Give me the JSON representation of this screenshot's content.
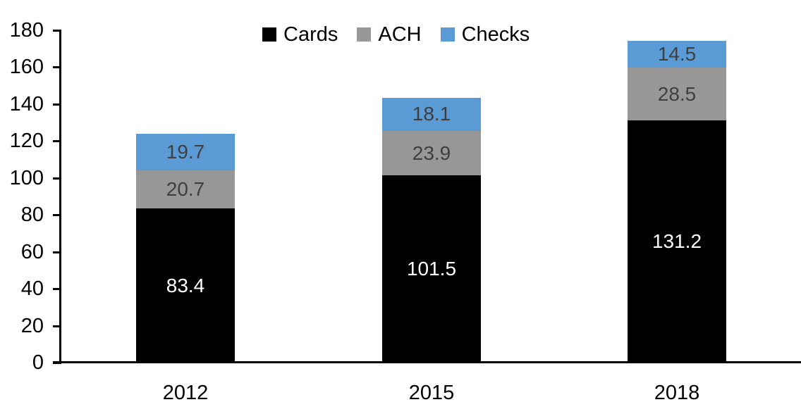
{
  "chart_data": {
    "type": "bar",
    "stacked": true,
    "title": "",
    "xlabel": "",
    "ylabel": "",
    "categories": [
      "2012",
      "2015",
      "2018"
    ],
    "series": [
      {
        "name": "Cards",
        "color": "#000000",
        "label_color": "#FFFFFF",
        "values": [
          83.4,
          101.5,
          131.2
        ]
      },
      {
        "name": "ACH",
        "color": "#979797",
        "label_color": "#3F3F3F",
        "values": [
          20.7,
          23.9,
          28.5
        ]
      },
      {
        "name": "Checks",
        "color": "#5B9BD5",
        "label_color": "#3F3F3F",
        "values": [
          19.7,
          18.1,
          14.5
        ]
      }
    ],
    "totals": [
      123.8,
      143.5,
      174.2
    ],
    "ylim": [
      0,
      180
    ],
    "y_ticks": [
      0,
      20,
      40,
      60,
      80,
      100,
      120,
      140,
      160,
      180
    ],
    "grid": false,
    "legend_position": "top",
    "data_labels_shown": true,
    "axis_color": "#000000",
    "background_color": "#FFFFFF"
  }
}
